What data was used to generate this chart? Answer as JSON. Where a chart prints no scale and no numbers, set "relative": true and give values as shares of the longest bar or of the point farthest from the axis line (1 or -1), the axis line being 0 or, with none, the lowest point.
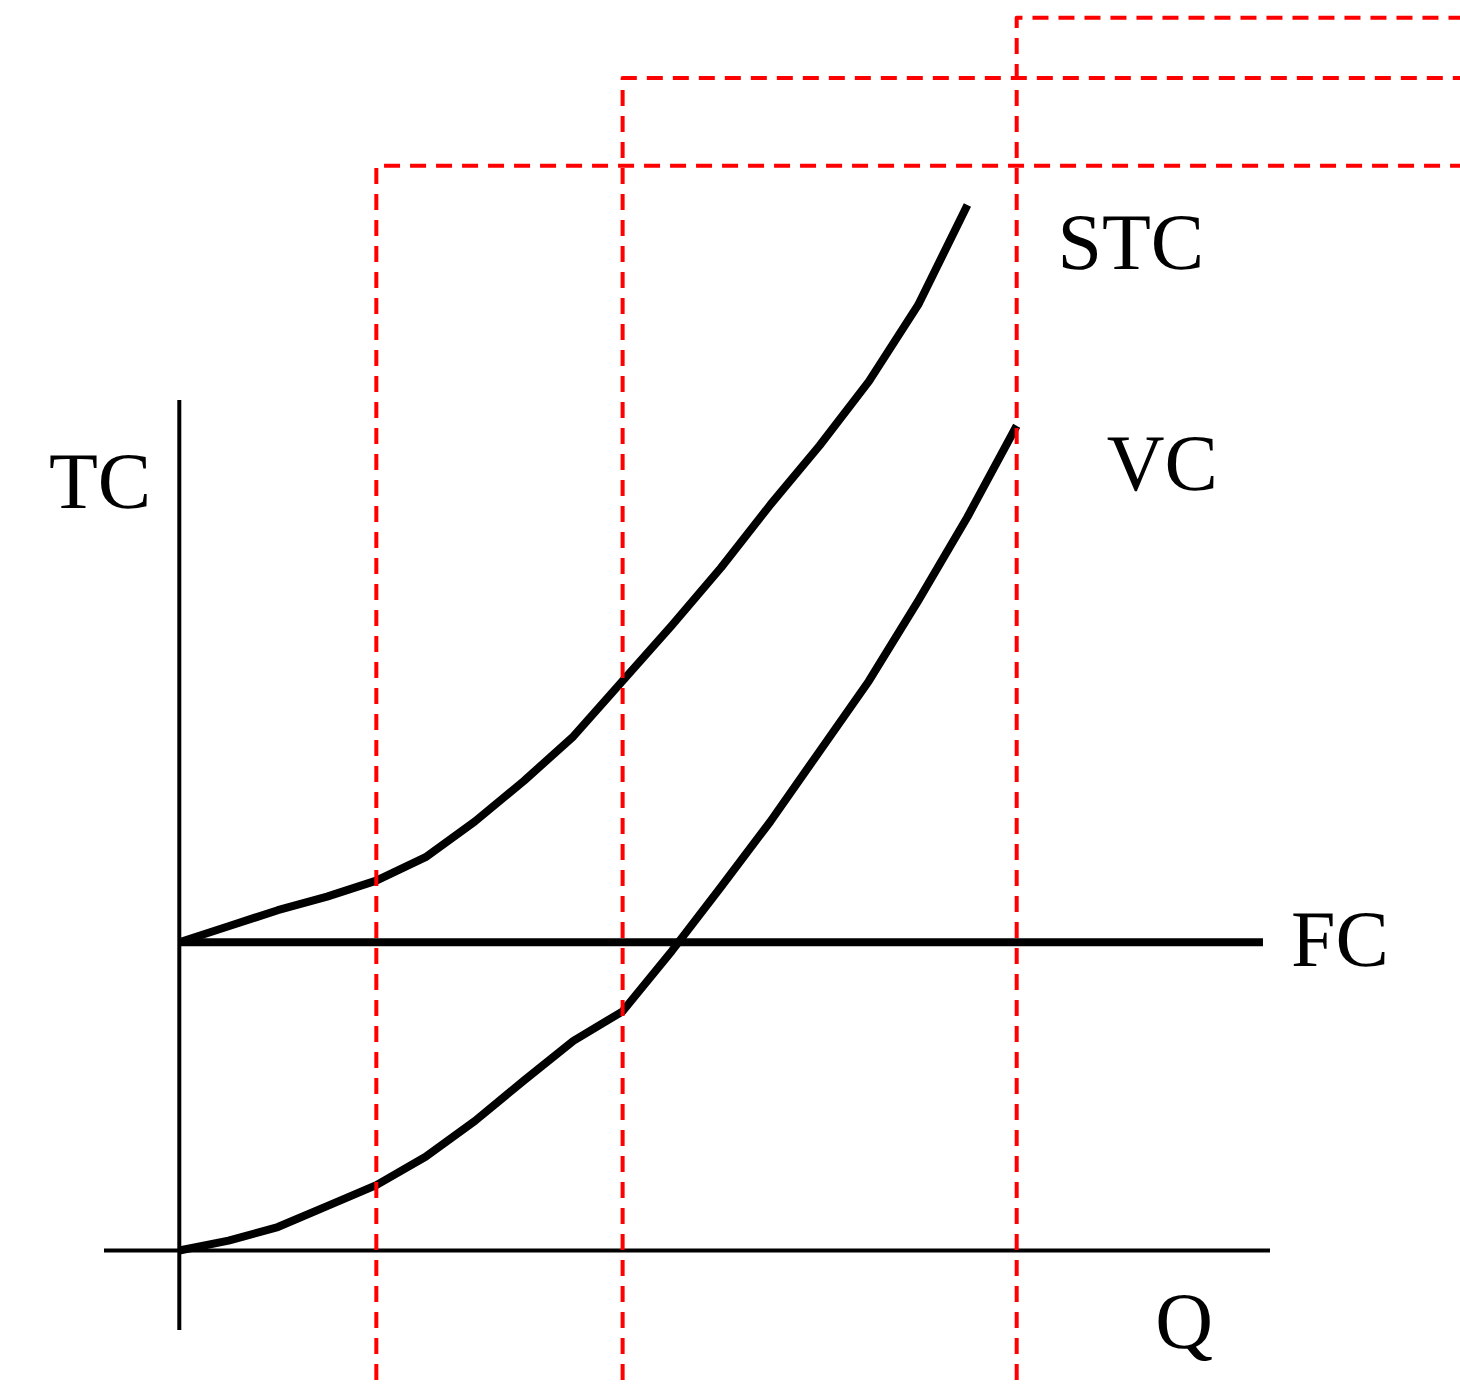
{
  "chart_data": {
    "type": "line",
    "relative": true,
    "xlabel": "Q",
    "ylabel": "TC",
    "line_style": "solid",
    "categories": [
      null,
      null,
      null,
      null,
      null,
      null,
      null,
      null,
      null,
      null,
      null,
      null,
      null,
      null,
      null,
      null,
      null,
      null,
      null,
      null,
      null,
      null,
      null,
      null,
      null,
      null,
      null
    ],
    "series": [
      {
        "name": "STC",
        "color": "#000000",
        "values": [
          0.25,
          0.263,
          0.276,
          0.287,
          0.3,
          0.319,
          0.348,
          0.381,
          0.417,
          0.462,
          0.507,
          0.554,
          0.605,
          0.653,
          0.705,
          0.767,
          0.848,
          null,
          null,
          null,
          null,
          null,
          null,
          null,
          null,
          null,
          null
        ]
      },
      {
        "name": "VC",
        "color": "#000000",
        "values": [
          0,
          0.008,
          0.019,
          0.036,
          0.053,
          0.076,
          0.105,
          0.138,
          0.17,
          0.194,
          0.243,
          0.295,
          0.348,
          0.405,
          0.462,
          0.527,
          0.595,
          0.669,
          null,
          null,
          null,
          null,
          null,
          null,
          null,
          null,
          null
        ]
      },
      {
        "name": "FC",
        "color": "#000000",
        "values": [
          0.25,
          0.25,
          0.25,
          0.25,
          0.25,
          0.25,
          0.25,
          0.25,
          0.25,
          0.25,
          0.25,
          0.25,
          0.25,
          0.25,
          0.25,
          0.25,
          0.25,
          0.25,
          0.25,
          0.25,
          0.25,
          0.25,
          0.25,
          null,
          null,
          null,
          null
        ]
      },
      {
        "type": "step",
        "color": "#ff0000",
        "line_style": "dashed",
        "values": [
          null,
          null,
          null,
          null,
          -0.105,
          0.88,
          0.88,
          0.88,
          0.88,
          0.88,
          0.88,
          0.88,
          0.88,
          0.88,
          0.88,
          0.88,
          0.88,
          0.88,
          0.88,
          0.88,
          0.88,
          0.88,
          0.88,
          0.88,
          0.88,
          0.88,
          0.88
        ]
      },
      {
        "type": "step",
        "color": "#ff0000",
        "line_style": "dashed",
        "values": [
          null,
          null,
          null,
          null,
          null,
          null,
          null,
          null,
          null,
          -0.105,
          0.951,
          0.951,
          0.951,
          0.951,
          0.951,
          0.951,
          0.951,
          0.951,
          0.951,
          0.951,
          0.951,
          0.951,
          0.951,
          0.951,
          0.951,
          0.951,
          0.951
        ]
      },
      {
        "type": "step",
        "color": "#ff0000",
        "line_style": "dashed",
        "values": [
          null,
          null,
          null,
          null,
          null,
          null,
          null,
          null,
          null,
          null,
          null,
          null,
          null,
          null,
          null,
          null,
          null,
          -0.105,
          1.0,
          1.0,
          1.0,
          1.0,
          1.0,
          1.0,
          1.0,
          1.0,
          1.0
        ]
      }
    ]
  }
}
